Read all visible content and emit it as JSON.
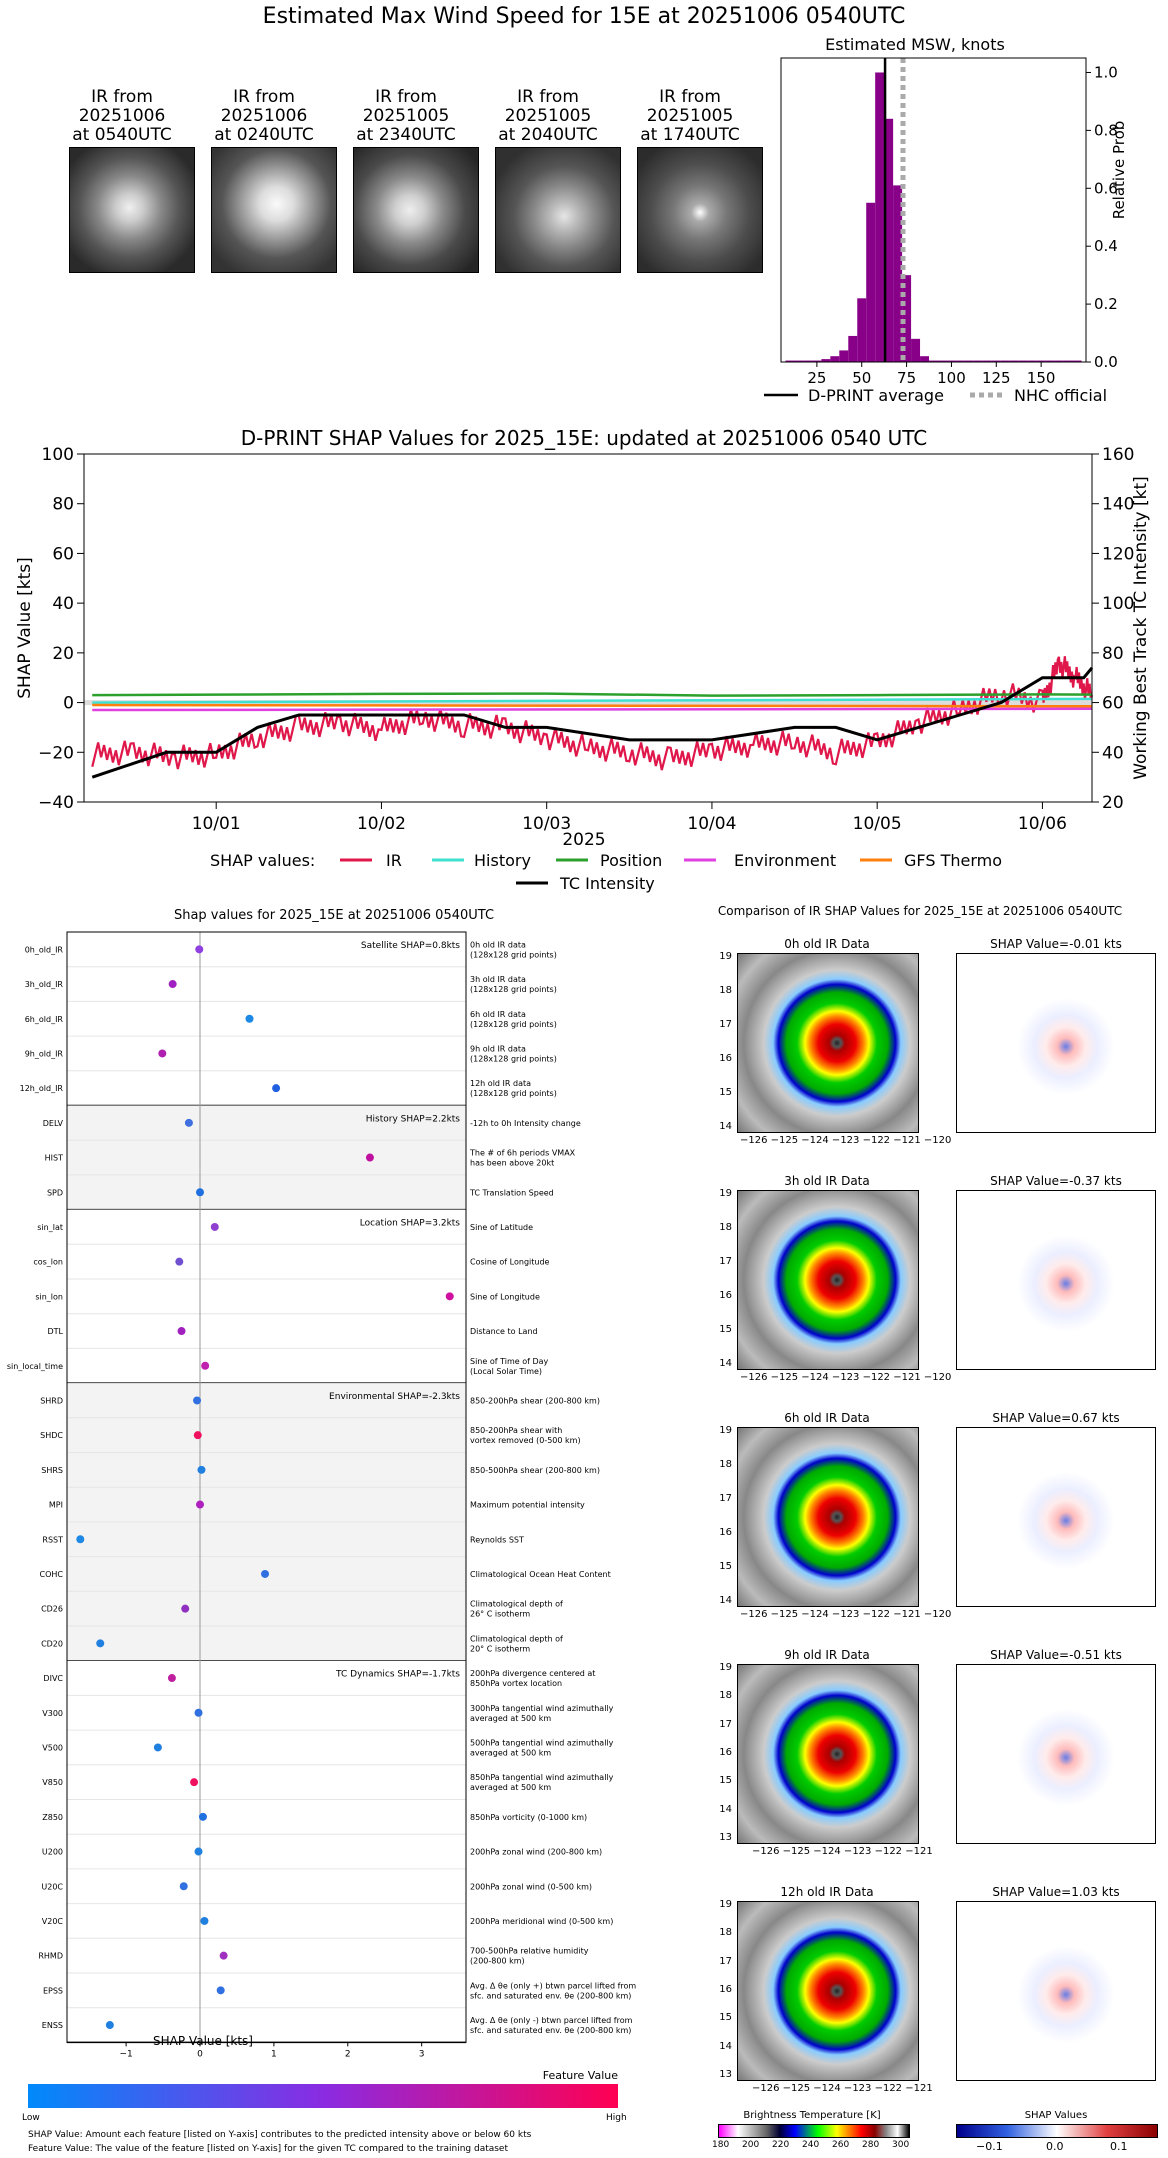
{
  "title": "Estimated Max Wind Speed for 15E at 20251006 0540UTC",
  "ir_images": [
    {
      "l1": "IR from",
      "l2": "20251006",
      "l3": "at 0540UTC"
    },
    {
      "l1": "IR from",
      "l2": "20251006",
      "l3": "at 0240UTC"
    },
    {
      "l1": "IR from",
      "l2": "20251005",
      "l3": "at 2340UTC"
    },
    {
      "l1": "IR from",
      "l2": "20251005",
      "l3": "at 2040UTC"
    },
    {
      "l1": "IR from",
      "l2": "20251005",
      "l3": "at 1740UTC"
    }
  ],
  "ir_comparison": {
    "title": "Comparison of IR SHAP Values for 2025_15E at 20251006 0540UTC",
    "rows": [
      {
        "ir_title": "0h old IR Data",
        "shap_title": "SHAP Value=-0.01 kts"
      },
      {
        "ir_title": "3h old IR Data",
        "shap_title": "SHAP Value=-0.37 kts"
      },
      {
        "ir_title": "6h old IR Data",
        "shap_title": "SHAP Value=0.67 kts"
      },
      {
        "ir_title": "9h old IR Data",
        "shap_title": "SHAP Value=-0.51 kts"
      },
      {
        "ir_title": "12h old IR Data",
        "shap_title": "SHAP Value=1.03 kts"
      }
    ],
    "lat_ticks": [
      "19",
      "18",
      "17",
      "16",
      "15",
      "14",
      "13"
    ],
    "lon_ticks_a": "−126 −125 −124 −123 −122 −121 −120",
    "lon_ticks_b": "−126 −125 −124 −123 −122 −121",
    "bt_label": "Brightness Temperature [K]",
    "bt_ticks": [
      "180",
      "200",
      "220",
      "240",
      "260",
      "280",
      "300"
    ],
    "shap_cbar_label": "SHAP Values",
    "shap_cbar_ticks": [
      "−0.1",
      "0.0",
      "0.1"
    ]
  },
  "chart_data": [
    {
      "type": "bar",
      "title": "Estimated MSW, knots",
      "xlabel": "",
      "ylabel": "Relative Prob",
      "xlim": [
        5,
        175
      ],
      "ylim": [
        0,
        1.05
      ],
      "xticks": [
        "25",
        "50",
        "75",
        "100",
        "125",
        "150"
      ],
      "yticks": [
        "0.0",
        "0.2",
        "0.4",
        "0.6",
        "0.8",
        "1.0"
      ],
      "bins": [
        10,
        15,
        20,
        25,
        30,
        35,
        40,
        45,
        50,
        55,
        60,
        65,
        70,
        75,
        80,
        85,
        90,
        95,
        100,
        105,
        110,
        115,
        120,
        125,
        130,
        135,
        140,
        145,
        150,
        155,
        160,
        165,
        170
      ],
      "values": [
        0.005,
        0.005,
        0.005,
        0.005,
        0.01,
        0.02,
        0.04,
        0.09,
        0.22,
        0.55,
        1.0,
        0.84,
        0.61,
        0.3,
        0.08,
        0.02,
        0.005,
        0.005,
        0.005,
        0.005,
        0.005,
        0.005,
        0.005,
        0.005,
        0.005,
        0.005,
        0.005,
        0.005,
        0.005,
        0.005,
        0.005,
        0.005,
        0.005
      ],
      "dprint_average": 63,
      "nhc_official": 73,
      "bar_color": "#880088",
      "legend": [
        "D-PRINT average",
        "NHC official"
      ]
    },
    {
      "type": "line",
      "title": "D-PRINT SHAP Values for 2025_15E: updated at 20251006 0540 UTC",
      "xlabel": "2025",
      "ylabel": "SHAP Value [kts]",
      "ylabel_right": "Working Best Track TC Intensity [kt]",
      "xlim": [
        -0.8,
        5.3
      ],
      "ylim": [
        -40,
        100
      ],
      "ylim_right": [
        20,
        160
      ],
      "xticks": [
        "10/01",
        "10/02",
        "10/03",
        "10/04",
        "10/05",
        "10/06"
      ],
      "yticks": [
        "−40",
        "−20",
        "0",
        "20",
        "40",
        "60",
        "80",
        "100"
      ],
      "yticks_right": [
        "20",
        "40",
        "60",
        "80",
        "100",
        "120",
        "140",
        "160"
      ],
      "legend_label": "SHAP values:",
      "series": [
        {
          "name": "IR",
          "color": "#e0174a",
          "x": [
            -0.75,
            -0.5,
            -0.25,
            0,
            0.25,
            0.5,
            0.75,
            1,
            1.25,
            1.5,
            1.75,
            2,
            2.25,
            2.5,
            2.75,
            3,
            3.25,
            3.5,
            3.75,
            4,
            4.25,
            4.5,
            4.75,
            5,
            5.1,
            5.2,
            5.3
          ],
          "y": [
            -21,
            -20,
            -22,
            -21,
            -14,
            -10,
            -8,
            -11,
            -6,
            -9,
            -10,
            -14,
            -18,
            -20,
            -23,
            -19,
            -17,
            -16,
            -20,
            -16,
            -8,
            -3,
            4,
            0,
            16,
            10,
            3
          ]
        },
        {
          "name": "History",
          "color": "#40e0d0",
          "x": [
            -0.75,
            5.3
          ],
          "y": [
            0,
            1.5
          ]
        },
        {
          "name": "Position",
          "color": "#2ca02c",
          "x": [
            -0.75,
            0,
            1,
            2,
            3,
            4,
            5,
            5.3
          ],
          "y": [
            3,
            3.2,
            3.5,
            3.6,
            2.8,
            3,
            3.3,
            3.2
          ]
        },
        {
          "name": "Environment",
          "color": "#e040e0",
          "x": [
            -0.75,
            5.3
          ],
          "y": [
            -3,
            -2.5
          ]
        },
        {
          "name": "GFS Thermo",
          "color": "#ff7f0e",
          "x": [
            -0.75,
            5.3
          ],
          "y": [
            -1,
            -1.5
          ]
        }
      ],
      "intensity": {
        "name": "TC Intensity",
        "color": "#000000",
        "x": [
          -0.75,
          -0.3,
          0,
          0.25,
          0.5,
          1,
          1.5,
          1.75,
          2,
          2.5,
          3,
          3.5,
          3.75,
          4,
          4.25,
          4.5,
          4.75,
          5,
          5.25,
          5.3
        ],
        "y": [
          30,
          40,
          40,
          50,
          55,
          55,
          55,
          50,
          50,
          45,
          45,
          50,
          50,
          45,
          50,
          55,
          60,
          70,
          70,
          74
        ]
      }
    },
    {
      "type": "scatter",
      "title": "Shap values for 2025_15E at 20251006 0540UTC",
      "xlabel": "SHAP Value [kts]",
      "xlim": [
        -1.8,
        3.6
      ],
      "xticks": [
        "−1",
        "0",
        "1",
        "2",
        "3"
      ],
      "groups": [
        {
          "label": "Satellite SHAP=0.8kts",
          "shade": false,
          "features": [
            {
              "name": "0h_old_IR",
              "desc": "0h old IR data\n(128x128 grid points)",
              "value": -0.01,
              "color": "#9040e0"
            },
            {
              "name": "3h_old_IR",
              "desc": "3h old IR data\n(128x128 grid points)",
              "value": -0.37,
              "color": "#a020c0"
            },
            {
              "name": "6h_old_IR",
              "desc": "6h old IR data\n(128x128 grid points)",
              "value": 0.67,
              "color": "#1e88e5"
            },
            {
              "name": "9h_old_IR",
              "desc": "9h old IR data\n(128x128 grid points)",
              "value": -0.51,
              "color": "#b020b0"
            },
            {
              "name": "12h_old_IR",
              "desc": "12h old IR data\n(128x128 grid points)",
              "value": 1.03,
              "color": "#2060e0"
            }
          ]
        },
        {
          "label": "History SHAP=2.2kts",
          "shade": true,
          "features": [
            {
              "name": "DELV",
              "desc": "-12h to 0h Intensity change",
              "value": -0.15,
              "color": "#4070e0"
            },
            {
              "name": "HIST",
              "desc": "The # of 6h periods VMAX\nhas been above 20kt",
              "value": 2.3,
              "color": "#c010a0"
            },
            {
              "name": "SPD",
              "desc": "TC Translation Speed",
              "value": 0.0,
              "color": "#2070e0"
            }
          ]
        },
        {
          "label": "Location SHAP=3.2kts",
          "shade": false,
          "features": [
            {
              "name": "sin_lat",
              "desc": "Sine of Latitude",
              "value": 0.2,
              "color": "#9040d0"
            },
            {
              "name": "cos_lon",
              "desc": "Cosine of Longitude",
              "value": -0.28,
              "color": "#7050d0"
            },
            {
              "name": "sin_lon",
              "desc": "Sine of Longitude",
              "value": 3.38,
              "color": "#d010a0"
            },
            {
              "name": "DTL",
              "desc": "Distance to Land",
              "value": -0.25,
              "color": "#a020c0"
            },
            {
              "name": "sin_local_time",
              "desc": "Sine of Time of Day\n(Local Solar Time)",
              "value": 0.07,
              "color": "#c020b0"
            }
          ]
        },
        {
          "label": "Environmental SHAP=-2.3kts",
          "shade": true,
          "features": [
            {
              "name": "SHRD",
              "desc": "850-200hPa shear (200-800 km)",
              "value": -0.04,
              "color": "#3070e0"
            },
            {
              "name": "SHDC",
              "desc": "850-200hPa shear with\nvortex removed (0-500 km)",
              "value": -0.03,
              "color": "#f01060"
            },
            {
              "name": "SHRS",
              "desc": "850-500hPa shear (200-800 km)",
              "value": 0.02,
              "color": "#2080e0"
            },
            {
              "name": "MPI",
              "desc": "Maximum potential intensity",
              "value": 0.0,
              "color": "#b020c0"
            },
            {
              "name": "RSST",
              "desc": "Reynolds SST",
              "value": -1.62,
              "color": "#1e88e5"
            },
            {
              "name": "COHC",
              "desc": "Climatological Ocean Heat Content",
              "value": 0.88,
              "color": "#3070e0"
            },
            {
              "name": "CD26",
              "desc": "Climatological depth of\n26° C isotherm",
              "value": -0.2,
              "color": "#9030c0"
            },
            {
              "name": "CD20",
              "desc": "Climatological depth of\n20° C isotherm",
              "value": -1.35,
              "color": "#2080e0"
            }
          ]
        },
        {
          "label": "TC Dynamics SHAP=-1.7kts",
          "shade": false,
          "features": [
            {
              "name": "DIVC",
              "desc": "200hPa divergence centered at\n850hPa vortex location",
              "value": -0.38,
              "color": "#c020a0"
            },
            {
              "name": "V300",
              "desc": "300hPa tangential wind azimuthally\naveraged at 500 km",
              "value": -0.02,
              "color": "#3070e0"
            },
            {
              "name": "V500",
              "desc": "500hPa tangential wind azimuthally\naveraged at 500 km",
              "value": -0.57,
              "color": "#2080e0"
            },
            {
              "name": "V850",
              "desc": "850hPa tangential wind azimuthally\naveraged at 500 km",
              "value": -0.08,
              "color": "#f01060"
            },
            {
              "name": "Z850",
              "desc": "850hPa vorticity (0-1000 km)",
              "value": 0.04,
              "color": "#2070e0"
            },
            {
              "name": "U200",
              "desc": "200hPa zonal wind (200-800 km)",
              "value": -0.02,
              "color": "#2080e0"
            },
            {
              "name": "U20C",
              "desc": "200hPa zonal wind (0-500 km)",
              "value": -0.22,
              "color": "#3070e0"
            },
            {
              "name": "V20C",
              "desc": "200hPa meridional wind (0-500 km)",
              "value": 0.06,
              "color": "#2080e0"
            },
            {
              "name": "RHMD",
              "desc": "700-500hPa relative humidity\n(200-800 km)",
              "value": 0.32,
              "color": "#a030c0"
            },
            {
              "name": "EPSS",
              "desc": "Avg. Δ θe (only +) btwn parcel lifted from\nsfc. and saturated env. θe (200-800 km)",
              "value": 0.28,
              "color": "#3070e0"
            },
            {
              "name": "ENSS",
              "desc": "Avg. Δ θe (only -) btwn parcel lifted from\nsfc. and saturated env. θe (200-800 km)",
              "value": -1.22,
              "color": "#2080e0"
            }
          ]
        }
      ],
      "colorbar": {
        "title": "Feature Value",
        "low": "Low",
        "high": "High",
        "from": "#008afb",
        "to": "#ff0052"
      },
      "footnotes": [
        "SHAP Value: Amount each feature [listed on Y-axis] contributes to the predicted intensity above or below 60 kts",
        "Feature Value: The value of the feature [listed on Y-axis] for the given TC compared to the training dataset"
      ]
    }
  ]
}
